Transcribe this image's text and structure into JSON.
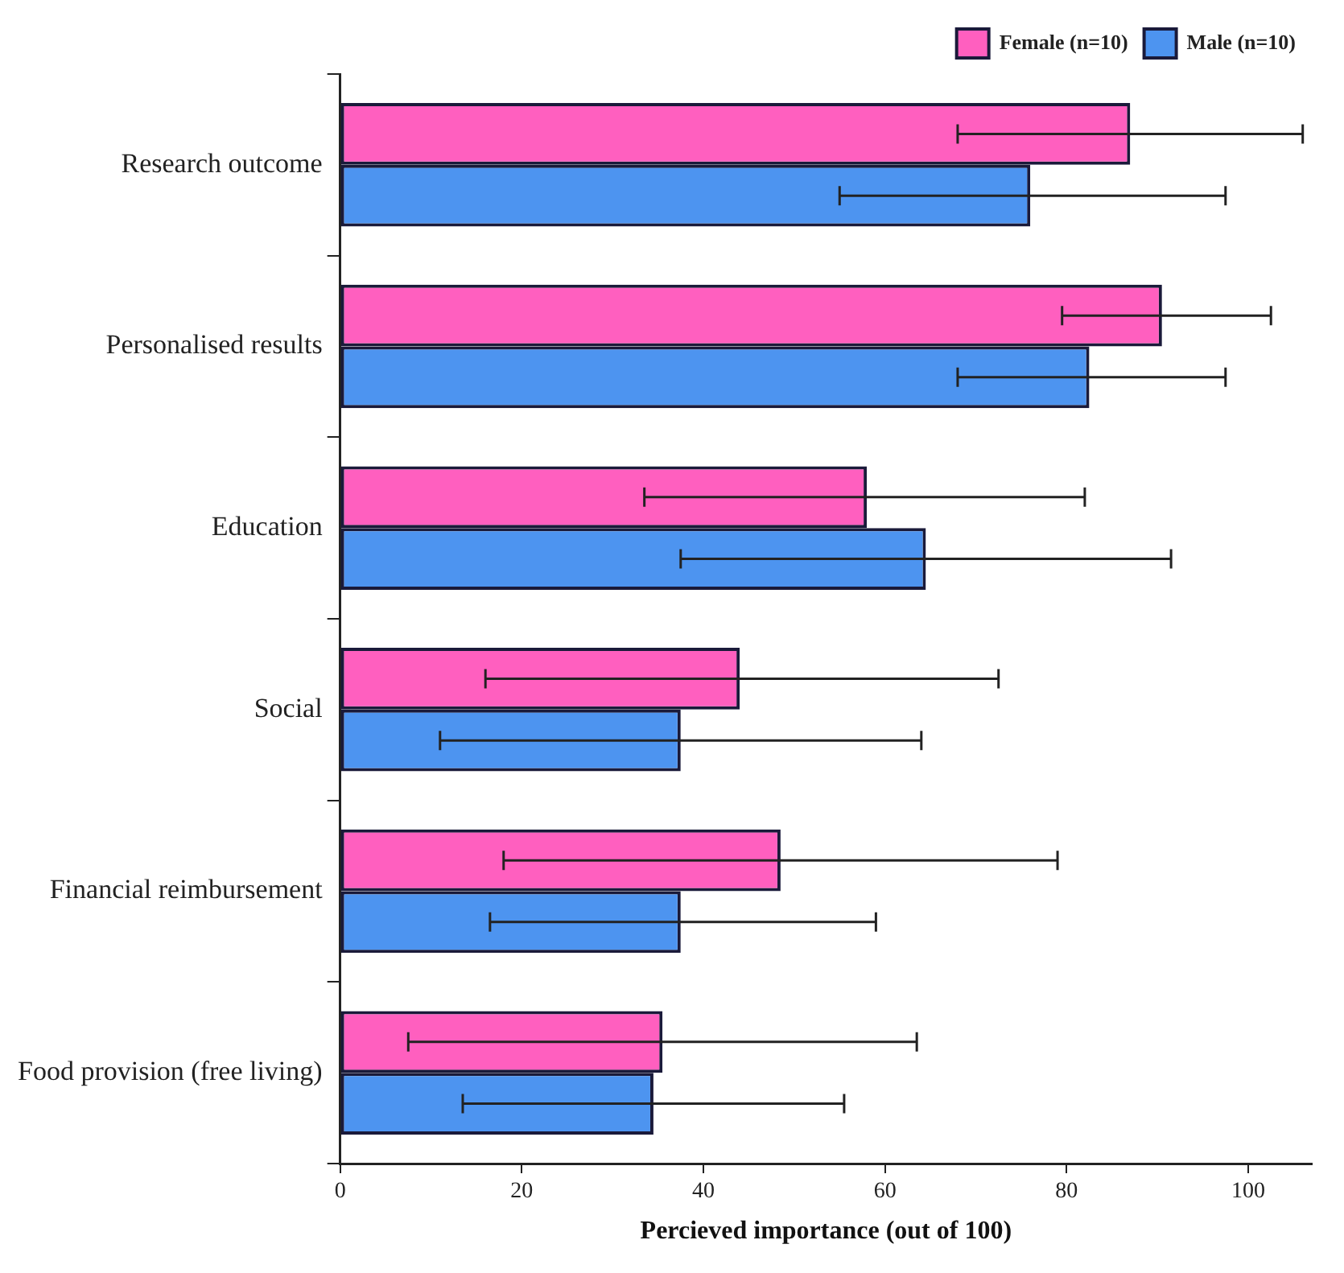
{
  "chart_data": {
    "type": "bar",
    "orientation": "horizontal",
    "xlabel": "Percieved importance (out of 100)",
    "categories": [
      "Research outcome",
      "Personalised results",
      "Education",
      "Social",
      "Financial reimbursement",
      "Food provision (free living)"
    ],
    "series": [
      {
        "name": "Female (n=10)",
        "color": "#ff5fbf",
        "values": [
          87,
          90.5,
          58,
          44,
          48.5,
          35.5
        ],
        "errors": [
          [
            68,
            106
          ],
          [
            79.5,
            102.5
          ],
          [
            33.5,
            82
          ],
          [
            16,
            72.5
          ],
          [
            18,
            79
          ],
          [
            7.5,
            63.5
          ]
        ]
      },
      {
        "name": "Male (n=10)",
        "color": "#4d94f0",
        "values": [
          76,
          82.5,
          64.5,
          37.5,
          37.5,
          34.5
        ],
        "errors": [
          [
            55,
            97.5
          ],
          [
            68,
            97.5
          ],
          [
            37.5,
            91.5
          ],
          [
            11,
            64
          ],
          [
            16.5,
            59
          ],
          [
            13.5,
            55.5
          ]
        ]
      }
    ],
    "xlim": [
      0,
      107
    ],
    "xticks": [
      0,
      20,
      40,
      60,
      80,
      100
    ],
    "legend": "top right"
  }
}
